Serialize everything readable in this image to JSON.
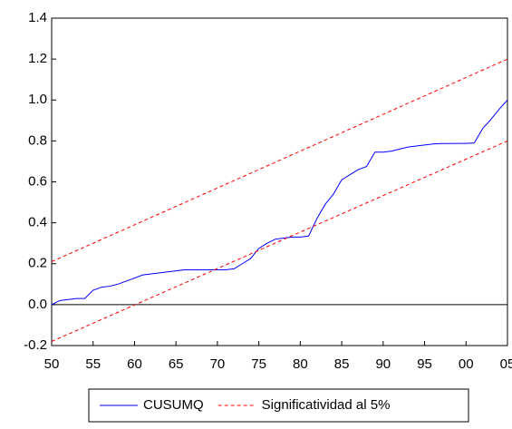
{
  "chart_data": {
    "type": "line",
    "xlim": [
      1950,
      2005
    ],
    "xticks": [
      {
        "value": 1950,
        "label": "50"
      },
      {
        "value": 1955,
        "label": "55"
      },
      {
        "value": 1960,
        "label": "60"
      },
      {
        "value": 1965,
        "label": "65"
      },
      {
        "value": 1970,
        "label": "70"
      },
      {
        "value": 1975,
        "label": "75"
      },
      {
        "value": 1980,
        "label": "80"
      },
      {
        "value": 1985,
        "label": "85"
      },
      {
        "value": 1990,
        "label": "90"
      },
      {
        "value": 1995,
        "label": "95"
      },
      {
        "value": 2000,
        "label": "00"
      },
      {
        "value": 2005,
        "label": "05"
      }
    ],
    "ylim": [
      -0.2,
      1.4
    ],
    "yticks": [
      {
        "value": -0.2,
        "label": "-0.2"
      },
      {
        "value": 0,
        "label": "0.0"
      },
      {
        "value": 0.2,
        "label": "0.2"
      },
      {
        "value": 0.4,
        "label": "0.4"
      },
      {
        "value": 0.6,
        "label": "0.6"
      },
      {
        "value": 0.8,
        "label": "0.8"
      },
      {
        "value": 1,
        "label": "1.0"
      },
      {
        "value": 1.2,
        "label": "1.2"
      },
      {
        "value": 1.4,
        "label": "1.4"
      }
    ],
    "reference_line": 0,
    "legend": "bottom",
    "series": [
      {
        "name": "CUSUMQ",
        "color": "#0000ff",
        "x": [
          1950,
          1951,
          1952,
          1953,
          1954,
          1955,
          1956,
          1957,
          1958,
          1959,
          1960,
          1961,
          1962,
          1963,
          1964,
          1965,
          1966,
          1967,
          1968,
          1969,
          1970,
          1971,
          1972,
          1973,
          1974,
          1975,
          1976,
          1977,
          1978,
          1979,
          1980,
          1981,
          1982,
          1983,
          1984,
          1985,
          1986,
          1987,
          1988,
          1989,
          1990,
          1991,
          1992,
          1993,
          1994,
          1995,
          1996,
          1997,
          1998,
          1999,
          2000,
          2001,
          2002,
          2003,
          2004,
          2005
        ],
        "values": [
          0.0,
          0.02,
          0.025,
          0.03,
          0.03,
          0.07,
          0.085,
          0.09,
          0.1,
          0.115,
          0.13,
          0.145,
          0.15,
          0.155,
          0.16,
          0.165,
          0.17,
          0.17,
          0.17,
          0.17,
          0.17,
          0.17,
          0.175,
          0.2,
          0.225,
          0.275,
          0.3,
          0.32,
          0.325,
          0.33,
          0.33,
          0.335,
          0.42,
          0.49,
          0.54,
          0.61,
          0.635,
          0.66,
          0.675,
          0.745,
          0.745,
          0.75,
          0.76,
          0.77,
          0.775,
          0.78,
          0.785,
          0.787,
          0.787,
          0.788,
          0.788,
          0.79,
          0.86,
          0.905,
          0.955,
          1.0
        ]
      },
      {
        "name": "Significatividad al 5%",
        "color": "#ff0000",
        "dashed": true,
        "x": [
          1950,
          2005
        ],
        "upper": [
          0.21,
          1.2
        ],
        "lower": [
          -0.18,
          0.8
        ]
      }
    ]
  }
}
